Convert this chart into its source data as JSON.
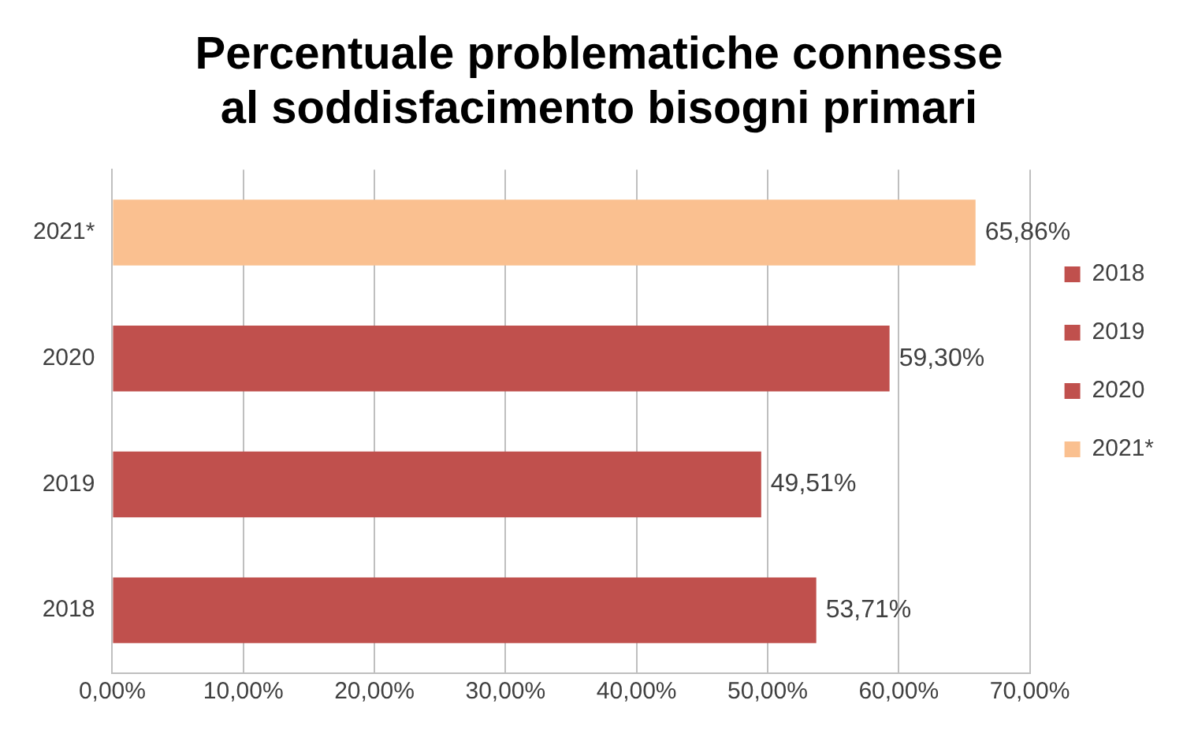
{
  "chart_data": {
    "type": "bar",
    "orientation": "horizontal",
    "stacked": true,
    "title": "Percentuale problematiche connesse\nal soddisfacimento bisogni primari",
    "categories": [
      "2021*",
      "2020",
      "2019",
      "2018"
    ],
    "series": [
      {
        "name": "2018",
        "color": "#c0504d",
        "values": [
          null,
          null,
          null,
          53.71
        ],
        "value_labels": [
          null,
          null,
          null,
          "53,71%"
        ]
      },
      {
        "name": "2019",
        "color": "#c0504d",
        "values": [
          null,
          null,
          49.51,
          null
        ],
        "value_labels": [
          null,
          null,
          "49,51%",
          null
        ]
      },
      {
        "name": "2020",
        "color": "#c0504d",
        "values": [
          null,
          59.3,
          null,
          null
        ],
        "value_labels": [
          null,
          "59,30%",
          null,
          null
        ]
      },
      {
        "name": "2021*",
        "color": "#fac090",
        "values": [
          65.86,
          null,
          null,
          null
        ],
        "value_labels": [
          "65,86%",
          null,
          null,
          null
        ]
      }
    ],
    "xlim": [
      0,
      70
    ],
    "xticks": [
      {
        "value": 0,
        "label": "0,00%"
      },
      {
        "value": 10,
        "label": "10,00%"
      },
      {
        "value": 20,
        "label": "20,00%"
      },
      {
        "value": 30,
        "label": "30,00%"
      },
      {
        "value": 40,
        "label": "40,00%"
      },
      {
        "value": 50,
        "label": "50,00%"
      },
      {
        "value": 60,
        "label": "60,00%"
      },
      {
        "value": 70,
        "label": "70,00%"
      }
    ],
    "grid": "x",
    "legend": "right"
  }
}
